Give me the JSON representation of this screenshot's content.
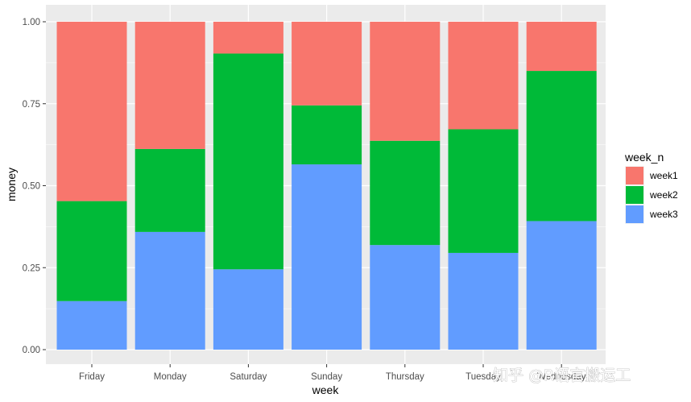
{
  "chart_data": {
    "type": "bar",
    "stacked": "fill",
    "categories": [
      "Friday",
      "Monday",
      "Saturday",
      "Sunday",
      "Thursday",
      "Tuesday",
      "Wednesday"
    ],
    "series": [
      {
        "name": "week1",
        "color": "#F8766D",
        "values": [
          0.547,
          0.388,
          0.097,
          0.255,
          0.363,
          0.328,
          0.15
        ]
      },
      {
        "name": "week2",
        "color": "#00BA38",
        "values": [
          0.305,
          0.253,
          0.658,
          0.18,
          0.318,
          0.377,
          0.458
        ]
      },
      {
        "name": "week3",
        "color": "#619CFF",
        "values": [
          0.148,
          0.359,
          0.245,
          0.565,
          0.319,
          0.295,
          0.392
        ]
      }
    ],
    "xlabel": "week",
    "ylabel": "money",
    "ylim": [
      0,
      1
    ],
    "yticks": [
      "0.00",
      "0.25",
      "0.50",
      "0.75",
      "1.00"
    ],
    "legend_title": "week_n",
    "legend_position": "right",
    "grid": true
  },
  "watermark": {
    "text": "知乎 @R语言搬运工"
  }
}
